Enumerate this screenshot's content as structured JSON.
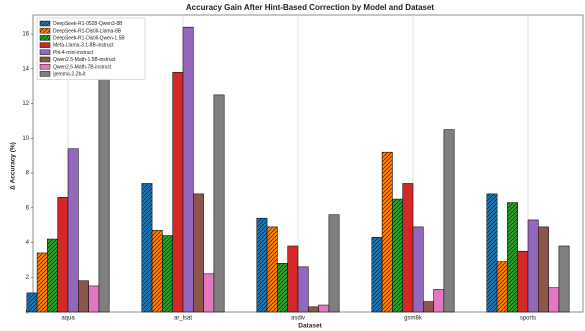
{
  "chart_data": {
    "type": "bar",
    "title": "Accuracy Gain After Hint-Based Correction by Model and Dataset",
    "xlabel": "Dataset",
    "ylabel": "Δ Accuracy (%)",
    "categories": [
      "aqua",
      "ar_lsat",
      "asdiv",
      "gsm8k",
      "sports"
    ],
    "series": [
      {
        "name": "DeepSeek-R1-0528-Qwen3-8B",
        "color": "#1f77b4",
        "hatch": true,
        "values": [
          1.1,
          7.4,
          5.4,
          4.3,
          6.8
        ]
      },
      {
        "name": "DeepSeek-R1-Distill-Llama-8B",
        "color": "#ff7f0e",
        "hatch": true,
        "values": [
          3.4,
          4.7,
          4.9,
          9.2,
          2.9
        ]
      },
      {
        "name": "DeepSeek-R1-Distill-Qwen-1.5B",
        "color": "#2ca02c",
        "hatch": true,
        "values": [
          4.2,
          4.4,
          2.8,
          6.5,
          6.3
        ]
      },
      {
        "name": "Meta-Llama-3.1-8B-instruct",
        "color": "#d62728",
        "hatch": false,
        "values": [
          6.6,
          13.8,
          3.8,
          7.4,
          3.5
        ]
      },
      {
        "name": "Phi-4-mini-instruct",
        "color": "#9467bd",
        "hatch": false,
        "values": [
          9.4,
          16.4,
          2.6,
          4.9,
          5.3
        ]
      },
      {
        "name": "Qwen2.5-Math-1.5B-instruct",
        "color": "#8c564b",
        "hatch": false,
        "values": [
          1.8,
          6.8,
          0.3,
          0.6,
          4.9
        ]
      },
      {
        "name": "Qwen2.5-Math-7B-instruct",
        "color": "#e377c2",
        "hatch": false,
        "values": [
          1.5,
          2.2,
          0.4,
          1.3,
          1.4
        ]
      },
      {
        "name": "gemma-2-2b-it",
        "color": "#7f7f7f",
        "hatch": false,
        "values": [
          14.4,
          12.5,
          5.6,
          10.5,
          3.8
        ]
      }
    ],
    "ylim": [
      0,
      17.1
    ],
    "yticks": [
      0,
      2,
      4,
      6,
      8,
      10,
      12,
      14,
      16
    ],
    "grid": true,
    "legend": "upper left"
  }
}
